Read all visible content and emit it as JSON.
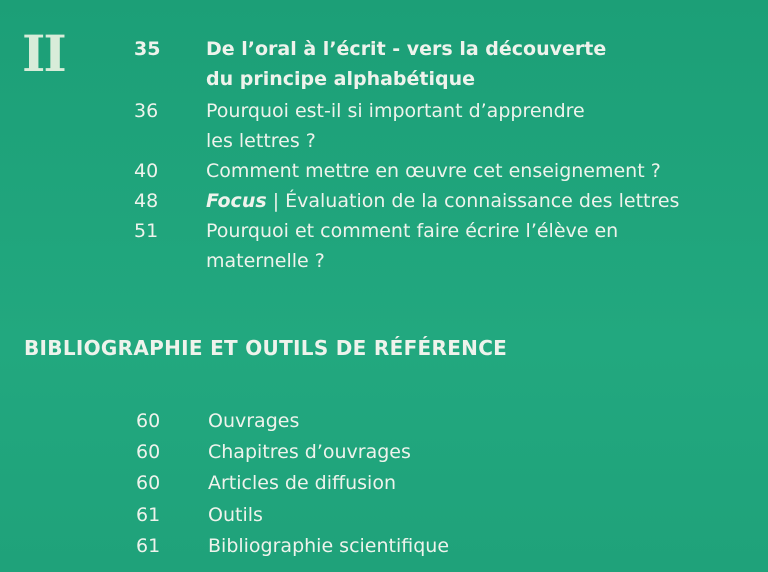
{
  "section": "II",
  "entries": [
    {
      "page": "35",
      "title": "De l’oral à l’écrit - vers la découverte\ndu principe alphabétique",
      "bold": true
    },
    {
      "page": "36",
      "title": "Pourquoi est-il si important d’apprendre\nles lettres ?"
    },
    {
      "page": "40",
      "title": "Comment mettre en œuvre cet enseignement ?"
    },
    {
      "page": "48",
      "focus": "Focus",
      "title": " | Évaluation de la connaissance des lettres"
    },
    {
      "page": "51",
      "title": "Pourquoi et comment faire écrire l’élève en\nmaternelle ?"
    }
  ],
  "biblio_heading": "BIBLIOGRAPHIE ET OUTILS DE RÉFÉRENCE",
  "biblio": [
    {
      "page": "60",
      "title": "Ouvrages"
    },
    {
      "page": "60",
      "title": "Chapitres d’ouvrages"
    },
    {
      "page": "60",
      "title": "Articles de diffusion"
    },
    {
      "page": "61",
      "title": "Outils"
    },
    {
      "page": "61",
      "title": "Bibliographie scientifique"
    }
  ]
}
